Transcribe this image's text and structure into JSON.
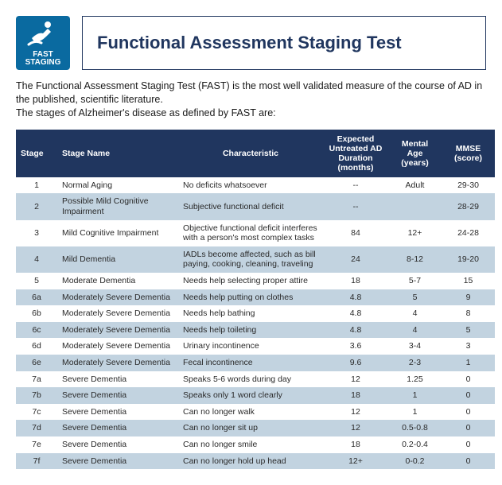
{
  "logo": {
    "label": "FAST STAGING"
  },
  "title": "Functional Assessment Staging Test",
  "intro_line1": "The Functional Assessment Staging Test (FAST) is the most well validated measure of the course of AD in the published, scientific literature.",
  "intro_line2": "The stages of Alzheimer's disease as defined by FAST are:",
  "columns": {
    "stage": "Stage",
    "name": "Stage Name",
    "char": "Characteristic",
    "dur": "Expected Untreated AD Duration (months)",
    "age": "Mental Age (years)",
    "mmse": "MMSE (score)"
  },
  "rows": [
    {
      "stage": "1",
      "name": "Normal Aging",
      "char": "No deficits whatsoever",
      "dur": "--",
      "age": "Adult",
      "mmse": "29-30"
    },
    {
      "stage": "2",
      "name": "Possible Mild Cognitive Impairment",
      "char": "Subjective functional deficit",
      "dur": "--",
      "age": "",
      "mmse": "28-29"
    },
    {
      "stage": "3",
      "name": "Mild Cognitive Impairment",
      "char": "Objective functional deficit interferes with a person's most complex tasks",
      "dur": "84",
      "age": "12+",
      "mmse": "24-28"
    },
    {
      "stage": "4",
      "name": "Mild Dementia",
      "char": "IADLs become affected, such as bill paying, cooking, cleaning, traveling",
      "dur": "24",
      "age": "8-12",
      "mmse": "19-20"
    },
    {
      "stage": "5",
      "name": "Moderate Dementia",
      "char": "Needs help selecting proper attire",
      "dur": "18",
      "age": "5-7",
      "mmse": "15"
    },
    {
      "stage": "6a",
      "name": "Moderately Severe Dementia",
      "char": "Needs help putting on clothes",
      "dur": "4.8",
      "age": "5",
      "mmse": "9"
    },
    {
      "stage": "6b",
      "name": "Moderately Severe Dementia",
      "char": "Needs help bathing",
      "dur": "4.8",
      "age": "4",
      "mmse": "8"
    },
    {
      "stage": "6c",
      "name": "Moderately Severe Dementia",
      "char": "Needs help toileting",
      "dur": "4.8",
      "age": "4",
      "mmse": "5"
    },
    {
      "stage": "6d",
      "name": "Moderately Severe Dementia",
      "char": "Urinary incontinence",
      "dur": "3.6",
      "age": "3-4",
      "mmse": "3"
    },
    {
      "stage": "6e",
      "name": "Moderately Severe Dementia",
      "char": "Fecal incontinence",
      "dur": "9.6",
      "age": "2-3",
      "mmse": "1"
    },
    {
      "stage": "7a",
      "name": "Severe Dementia",
      "char": "Speaks 5-6 words during day",
      "dur": "12",
      "age": "1.25",
      "mmse": "0"
    },
    {
      "stage": "7b",
      "name": "Severe Dementia",
      "char": "Speaks only 1 word clearly",
      "dur": "18",
      "age": "1",
      "mmse": "0"
    },
    {
      "stage": "7c",
      "name": "Severe Dementia",
      "char": "Can no longer walk",
      "dur": "12",
      "age": "1",
      "mmse": "0"
    },
    {
      "stage": "7d",
      "name": "Severe Dementia",
      "char": "Can no longer sit up",
      "dur": "12",
      "age": "0.5-0.8",
      "mmse": "0"
    },
    {
      "stage": "7e",
      "name": "Severe Dementia",
      "char": "Can no longer smile",
      "dur": "18",
      "age": "0.2-0.4",
      "mmse": "0"
    },
    {
      "stage": "7f",
      "name": "Severe Dementia",
      "char": "Can no longer hold up head",
      "dur": "12+",
      "age": "0-0.2",
      "mmse": "0"
    }
  ],
  "style": {
    "header_bg": "#20365f",
    "row_even_bg": "#c2d3e0",
    "row_odd_bg": "#ffffff",
    "logo_bg": "#0a6aa0"
  }
}
